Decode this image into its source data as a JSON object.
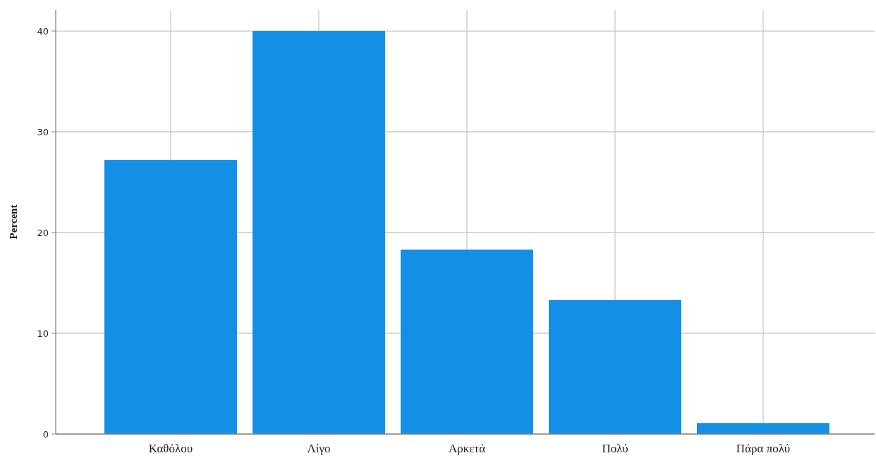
{
  "chart_data": {
    "type": "bar",
    "ylabel": "Percent",
    "categories": [
      "Καθόλου",
      "Λίγο",
      "Αρκετά",
      "Πολύ",
      "Πάρα πολύ"
    ],
    "values": [
      27.2,
      40.0,
      18.3,
      13.3,
      1.1
    ],
    "color": "#1390e6",
    "ylim": [
      0,
      42.1
    ],
    "yticks": [
      0,
      10,
      20,
      30,
      40
    ],
    "grid": true
  }
}
